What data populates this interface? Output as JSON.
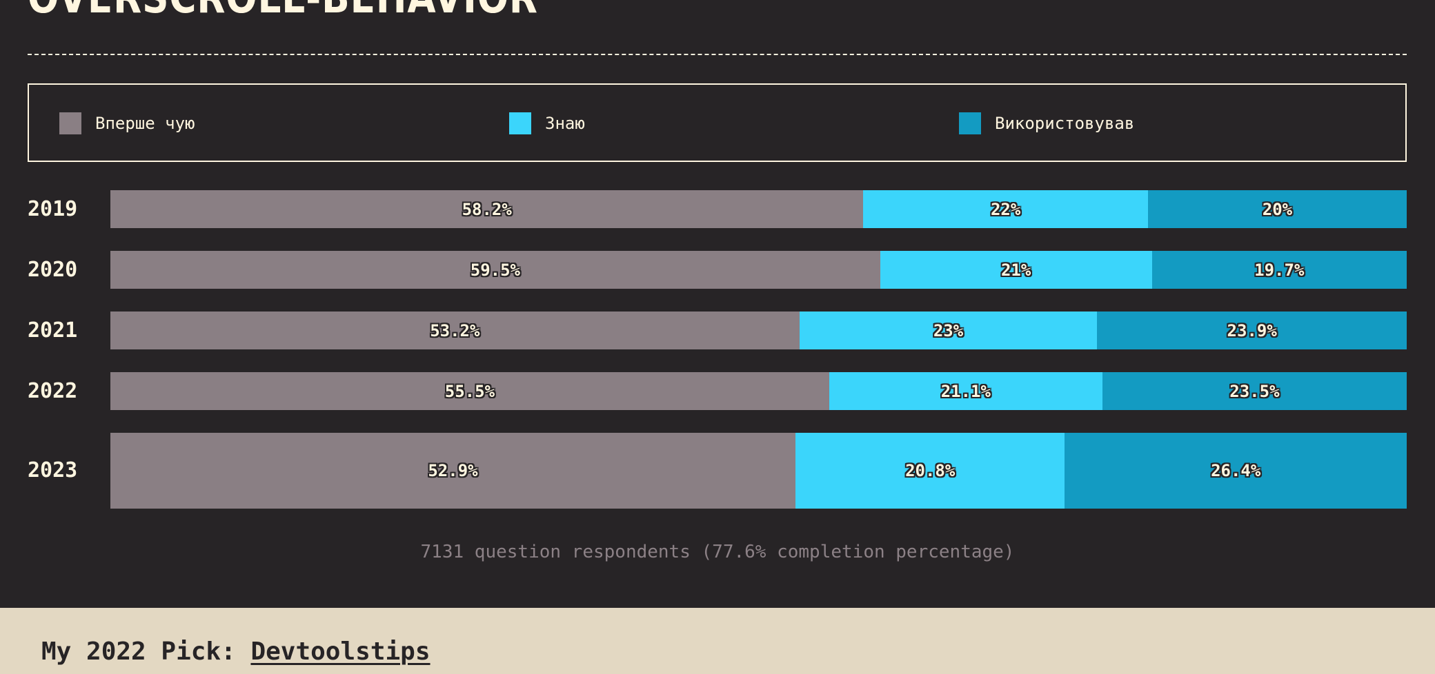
{
  "section": {
    "title": "OVERSCROLL-BEHAVIOR"
  },
  "colors": {
    "background": "#272426",
    "text": "#fff6e0",
    "never_heard": "#8a7f84",
    "know": "#3bd5fb",
    "used": "#139bc2",
    "muted": "#8c8186",
    "pick_band": "#e3d8c2"
  },
  "chart_data": {
    "type": "bar",
    "orientation": "horizontal",
    "stacked": true,
    "normalized": true,
    "categories": [
      "2019",
      "2020",
      "2021",
      "2022",
      "2023"
    ],
    "series": [
      {
        "name": "Вперше чую",
        "color": "#8a7f84",
        "values": [
          58.2,
          59.5,
          53.2,
          55.5,
          52.9
        ],
        "labels": [
          "58.2%",
          "59.5%",
          "53.2%",
          "55.5%",
          "52.9%"
        ]
      },
      {
        "name": "Знаю",
        "color": "#3bd5fb",
        "values": [
          22,
          21,
          23,
          21.1,
          20.8
        ],
        "labels": [
          "22%",
          "21%",
          "23%",
          "21.1%",
          "20.8%"
        ]
      },
      {
        "name": "Використовував",
        "color": "#139bc2",
        "values": [
          20,
          19.7,
          23.9,
          23.5,
          26.4
        ],
        "labels": [
          "20%",
          "19.7%",
          "23.9%",
          "23.5%",
          "26.4%"
        ]
      }
    ],
    "xlim": [
      0,
      100
    ],
    "legend": "top",
    "grid": false
  },
  "footer": {
    "respondents": "7131 question respondents (77.6% completion percentage)"
  },
  "pick": {
    "prefix": "My 2022 Pick: ",
    "link_label": "Devtoolstips"
  }
}
